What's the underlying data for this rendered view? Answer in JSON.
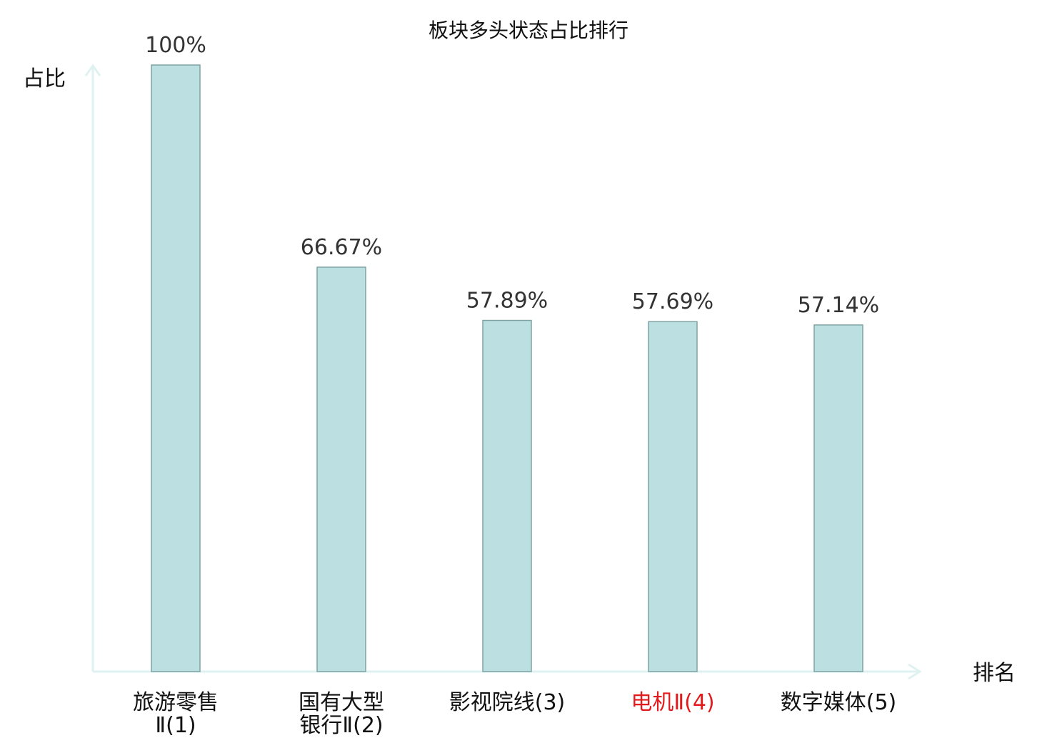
{
  "chart_data": {
    "type": "bar",
    "title": "板块多头状态占比排行",
    "ylabel": "占比",
    "xlabel": "排名",
    "categories": [
      [
        "旅游零售",
        "Ⅱ(1)"
      ],
      [
        "国有大型",
        "银行Ⅱ(2)"
      ],
      [
        "影视院线(3)"
      ],
      [
        "电机Ⅱ(4)"
      ],
      [
        "数字媒体(5)"
      ]
    ],
    "values": [
      100,
      66.67,
      57.89,
      57.69,
      57.14
    ],
    "value_labels": [
      "100%",
      "66.67%",
      "57.89%",
      "57.69%",
      "57.14%"
    ],
    "highlight_index": 3,
    "ylim": [
      0,
      100
    ],
    "colors": {
      "bar_fill": "#bce0e1",
      "bar_stroke": "#7fa3a4",
      "axis": "#dff2f0",
      "highlight_label": "#e31a1c",
      "text": "#111111",
      "value_text": "#333333"
    },
    "grid": false,
    "legend": "none"
  }
}
